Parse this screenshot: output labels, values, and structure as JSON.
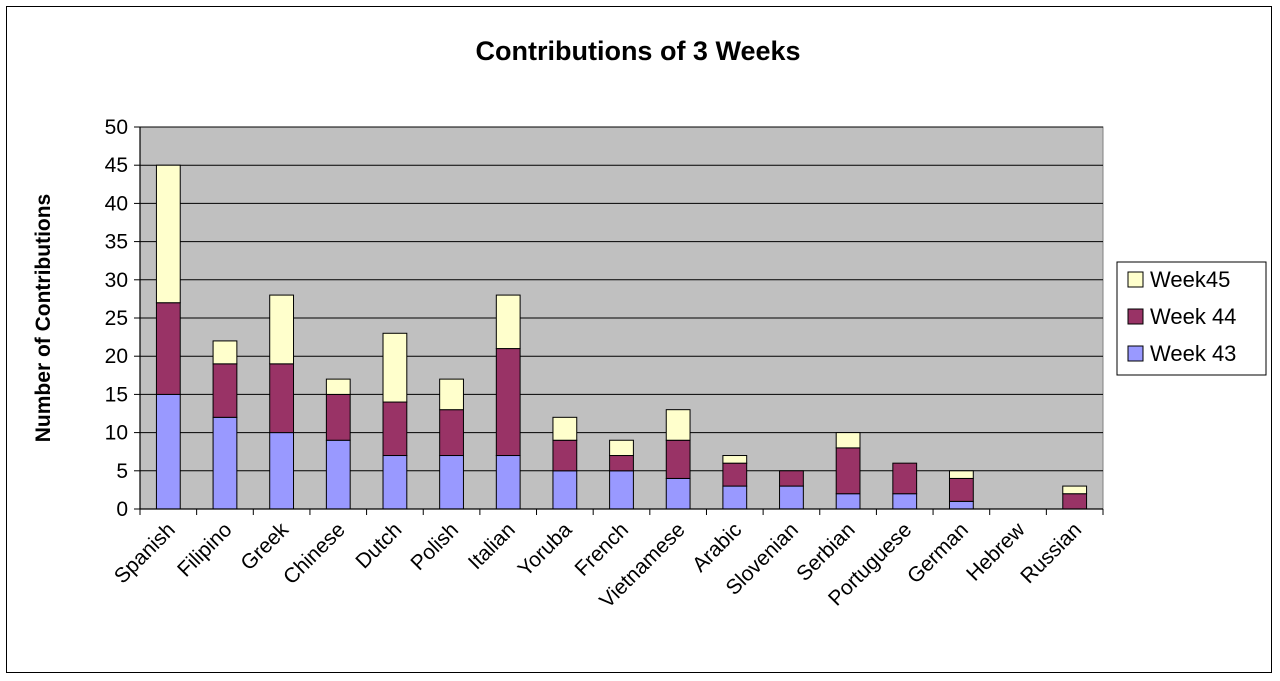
{
  "chart_data": {
    "type": "bar",
    "stacked": true,
    "title": "Contributions of 3 Weeks",
    "xlabel": "",
    "ylabel": "Number of Contributions",
    "ylim": [
      0,
      50
    ],
    "yticks": [
      0,
      5,
      10,
      15,
      20,
      25,
      30,
      35,
      40,
      45,
      50
    ],
    "grid": true,
    "legend_position": "right",
    "categories": [
      "Spanish",
      "Filipino",
      "Greek",
      "Chinese",
      "Dutch",
      "Polish",
      "Italian",
      "Yoruba",
      "French",
      "Vietnamese",
      "Arabic",
      "Slovenian",
      "Serbian",
      "Portuguese",
      "German",
      "Hebrew",
      "Russian"
    ],
    "series": [
      {
        "name": "Week 43",
        "color": "#9999ff",
        "values": [
          15,
          12,
          10,
          9,
          7,
          7,
          7,
          5,
          5,
          4,
          3,
          3,
          2,
          2,
          1,
          0,
          0
        ]
      },
      {
        "name": "Week 44",
        "color": "#993366",
        "values": [
          12,
          7,
          9,
          6,
          7,
          6,
          14,
          4,
          2,
          5,
          3,
          2,
          6,
          4,
          3,
          0,
          2
        ]
      },
      {
        "name": "Week45",
        "color": "#ffffcc",
        "values": [
          18,
          3,
          9,
          2,
          9,
          4,
          7,
          3,
          2,
          4,
          1,
          0,
          2,
          0,
          1,
          0,
          1
        ]
      }
    ],
    "legend_order": [
      "Week45",
      "Week 44",
      "Week 43"
    ],
    "plot_background": "#c0c0c0"
  }
}
